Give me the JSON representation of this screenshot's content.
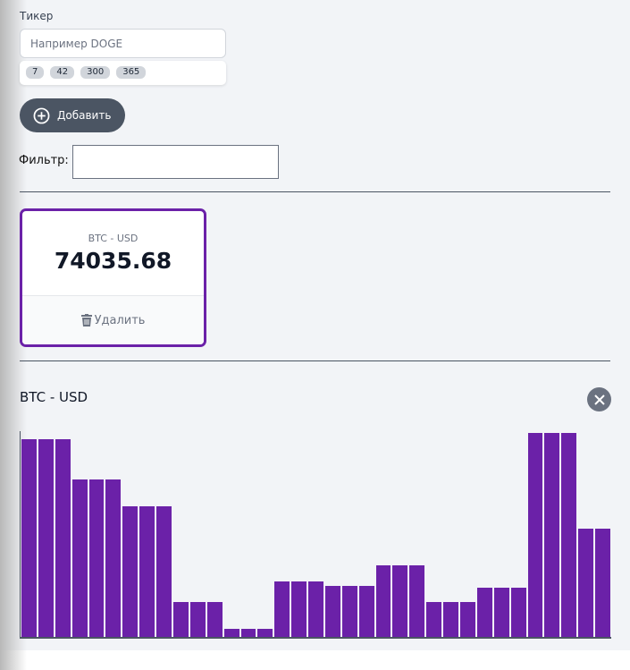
{
  "form": {
    "ticker_label": "Тикер",
    "ticker_placeholder": "Например DOGE",
    "suggestions": [
      "7",
      "42",
      "300",
      "365"
    ],
    "add_label": "Добавить",
    "filter_label": "Фильтр:",
    "filter_value": ""
  },
  "tickers": [
    {
      "name": "BTC - USD",
      "price": "74035.68",
      "delete_label": "Удалить"
    }
  ],
  "graph": {
    "title": "BTC - USD",
    "bar_color": "#6b21a8"
  },
  "chart_data": {
    "type": "bar",
    "values_unit": "relative height percent of max",
    "values": [
      97,
      97,
      97,
      77,
      77,
      77,
      64,
      64,
      64,
      17,
      17,
      17,
      4,
      4,
      4,
      27,
      27,
      27,
      25,
      25,
      25,
      35,
      35,
      35,
      17,
      17,
      17,
      24,
      24,
      24,
      100,
      100,
      100,
      53,
      53
    ]
  }
}
